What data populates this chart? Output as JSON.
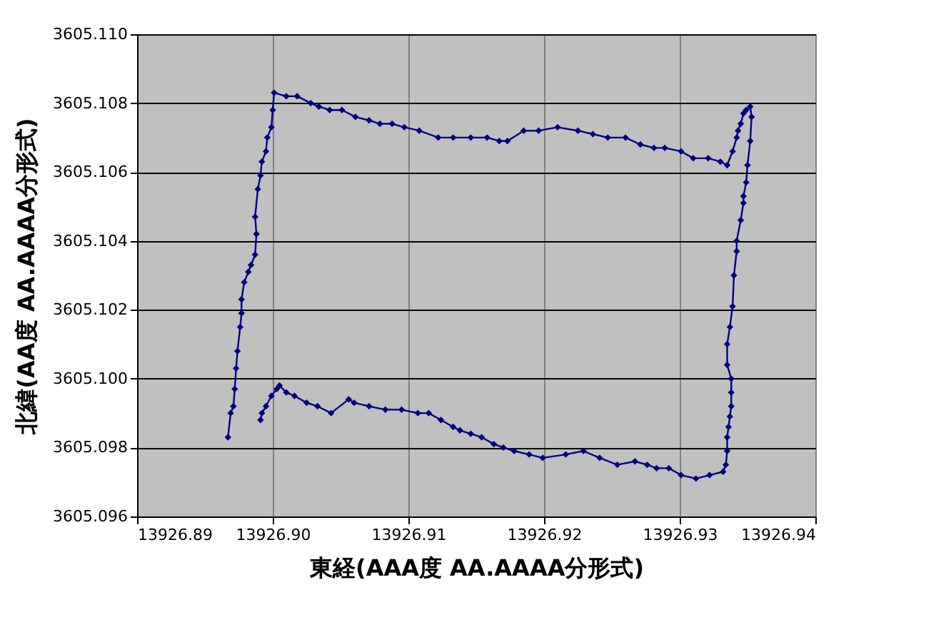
{
  "chart_data": {
    "type": "line",
    "xlabel": "東経(AAA度 AA.AAAA分形式)",
    "ylabel": "北緯(AA度 AA.AAAA分形式)",
    "marker": "diamond",
    "line_style": "solid",
    "grid": true,
    "xlim": [
      13926.89,
      13926.94
    ],
    "xticks": [
      {
        "value": 13926.89,
        "label": "13926.89"
      },
      {
        "value": 13926.9,
        "label": "13926.90"
      },
      {
        "value": 13926.91,
        "label": "13926.91"
      },
      {
        "value": 13926.92,
        "label": "13926.92"
      },
      {
        "value": 13926.93,
        "label": "13926.93"
      },
      {
        "value": 13926.94,
        "label": "13926.94"
      }
    ],
    "ylim": [
      3605.096,
      3605.11
    ],
    "yticks": [
      {
        "value": 3605.096,
        "label": "3605.096"
      },
      {
        "value": 3605.098,
        "label": "3605.098"
      },
      {
        "value": 3605.1,
        "label": "3605.100"
      },
      {
        "value": 3605.102,
        "label": "3605.102"
      },
      {
        "value": 3605.104,
        "label": "3605.104"
      },
      {
        "value": 3605.106,
        "label": "3605.106"
      },
      {
        "value": 3605.108,
        "label": "3605.108"
      },
      {
        "value": 3605.11,
        "label": "3605.110"
      }
    ],
    "x": [
      13926.8967,
      13926.8969,
      13926.8971,
      13926.8972,
      13926.8973,
      13926.8974,
      13926.8976,
      13926.8977,
      13926.8977,
      13926.8979,
      13926.8982,
      13926.8984,
      13926.8987,
      13926.8988,
      13926.8987,
      13926.8989,
      13926.8991,
      13926.8992,
      13926.8995,
      13926.8996,
      13926.8999,
      13926.9,
      13926.9001,
      13926.901,
      13926.9018,
      13926.9028,
      13926.9034,
      13926.9042,
      13926.9051,
      13926.9061,
      13926.9071,
      13926.9079,
      13926.9088,
      13926.9097,
      13926.9108,
      13926.9122,
      13926.9133,
      13926.9146,
      13926.9158,
      13926.9167,
      13926.9173,
      13926.9185,
      13926.9196,
      13926.921,
      13926.9225,
      13926.9236,
      13926.9247,
      13926.926,
      13926.9271,
      13926.9281,
      13926.9289,
      13926.9301,
      13926.931,
      13926.9321,
      13926.933,
      13926.9335,
      13926.9339,
      13926.9342,
      13926.9343,
      13926.9345,
      13926.9347,
      13926.9349,
      13926.9352,
      13926.9353,
      13926.9352,
      13926.935,
      13926.9349,
      13926.9347,
      13926.9347,
      13926.9345,
      13926.9342,
      13926.9342,
      13926.934,
      13926.9339,
      13926.9337,
      13926.9335,
      13926.9335,
      13926.9338,
      13926.9338,
      13926.9338,
      13926.9337,
      13926.9336,
      13926.9335,
      13926.9335,
      13926.9334,
      13926.9332,
      13926.9322,
      13926.9312,
      13926.9301,
      13926.9292,
      13926.9283,
      13926.9276,
      13926.9267,
      13926.9254,
      13926.9241,
      13926.9229,
      13926.9216,
      13926.9199,
      13926.9189,
      13926.9178,
      13926.917,
      13926.9163,
      13926.9154,
      13926.9146,
      13926.9138,
      13926.9133,
      13926.9124,
      13926.9115,
      13926.9107,
      13926.9095,
      13926.9083,
      13926.9071,
      13926.906,
      13926.9056,
      13926.9043,
      13926.9033,
      13926.9025,
      13926.9016,
      13926.901,
      13926.9005,
      13926.9003,
      13926.8999,
      13926.8995,
      13926.8992,
      13926.8991
    ],
    "series": [
      {
        "color": "#000080",
        "values": [
          3605.0983,
          3605.099,
          3605.0992,
          3605.0997,
          3605.1003,
          3605.1008,
          3605.1015,
          3605.1019,
          3605.1023,
          3605.1028,
          3605.1031,
          3605.1033,
          3605.1036,
          3605.1042,
          3605.1047,
          3605.1055,
          3605.1059,
          3605.1063,
          3605.1066,
          3605.107,
          3605.1073,
          3605.1078,
          3605.1083,
          3605.1082,
          3605.1082,
          3605.108,
          3605.1079,
          3605.1078,
          3605.1078,
          3605.1076,
          3605.1075,
          3605.1074,
          3605.1074,
          3605.1073,
          3605.1072,
          3605.107,
          3605.107,
          3605.107,
          3605.107,
          3605.1069,
          3605.1069,
          3605.1072,
          3605.1072,
          3605.1073,
          3605.1072,
          3605.1071,
          3605.107,
          3605.107,
          3605.1068,
          3605.1067,
          3605.1067,
          3605.1066,
          3605.1064,
          3605.1064,
          3605.1063,
          3605.1062,
          3605.1066,
          3605.107,
          3605.1072,
          3605.1074,
          3605.1077,
          3605.1078,
          3605.1079,
          3605.1076,
          3605.1069,
          3605.1062,
          3605.1057,
          3605.1053,
          3605.1051,
          3605.1046,
          3605.104,
          3605.1037,
          3605.103,
          3605.1021,
          3605.1015,
          3605.101,
          3605.1004,
          3605.1,
          3605.0996,
          3605.0992,
          3605.0989,
          3605.0986,
          3605.0983,
          3605.0979,
          3605.0975,
          3605.0973,
          3605.0972,
          3605.0971,
          3605.0972,
          3605.0974,
          3605.0974,
          3605.0975,
          3605.0976,
          3605.0975,
          3605.0977,
          3605.0979,
          3605.0978,
          3605.0977,
          3605.0978,
          3605.0979,
          3605.098,
          3605.0981,
          3605.0983,
          3605.0984,
          3605.0985,
          3605.0986,
          3605.0988,
          3605.099,
          3605.099,
          3605.0991,
          3605.0991,
          3605.0992,
          3605.0993,
          3605.0994,
          3605.099,
          3605.0992,
          3605.0993,
          3605.0995,
          3605.0996,
          3605.0998,
          3605.0997,
          3605.0995,
          3605.0992,
          3605.099,
          3605.0988
        ]
      }
    ]
  }
}
